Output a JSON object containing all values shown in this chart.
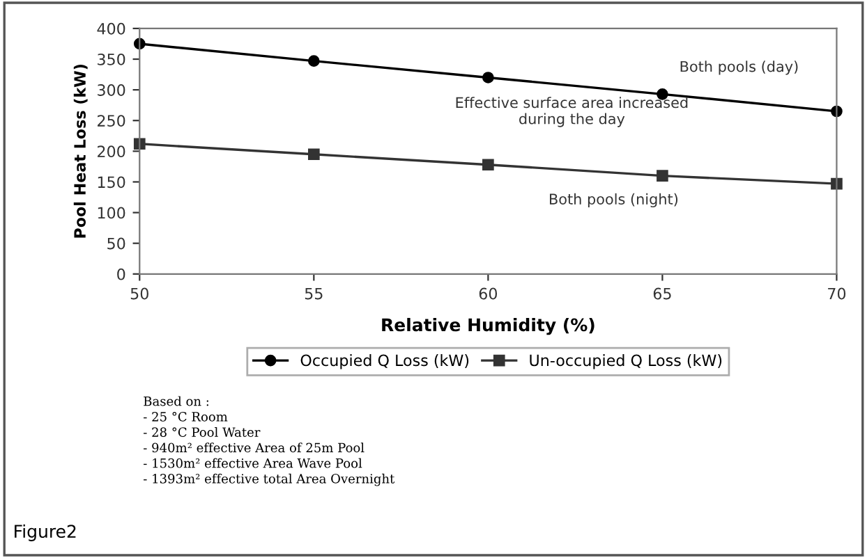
{
  "chart_data": {
    "type": "line",
    "xlabel": "Relative Humidity (%)",
    "ylabel": "Pool Heat Loss (kW)",
    "x": [
      50,
      55,
      60,
      65,
      70
    ],
    "xlim": [
      50,
      70
    ],
    "xticks": [
      50,
      55,
      60,
      65,
      70
    ],
    "ylim": [
      0,
      400
    ],
    "yticks": [
      0,
      50,
      100,
      150,
      200,
      250,
      300,
      350,
      400
    ],
    "series": [
      {
        "name": "Occupied Q Loss (kW)",
        "color": "#000000",
        "marker": "circle",
        "values": [
          375,
          347,
          320,
          293,
          265
        ]
      },
      {
        "name": "Un-occupied Q Loss (kW)",
        "color": "#333333",
        "marker": "square",
        "values": [
          212,
          195,
          178,
          160,
          147
        ]
      }
    ],
    "grid": false,
    "legend": "bottom",
    "line_style": "solid",
    "annotations": [
      "Both pools (day)",
      "Effective surface area increased\nduring the day",
      "Both pools (night)",
      "Based on :\n- 25 °C Room\n- 28 °C Pool Water\n- 940m² effective Area of 25m Pool\n- 1530m² effective Area Wave Pool\n- 1393m² effective total Area Overnight",
      "Figure2"
    ]
  }
}
